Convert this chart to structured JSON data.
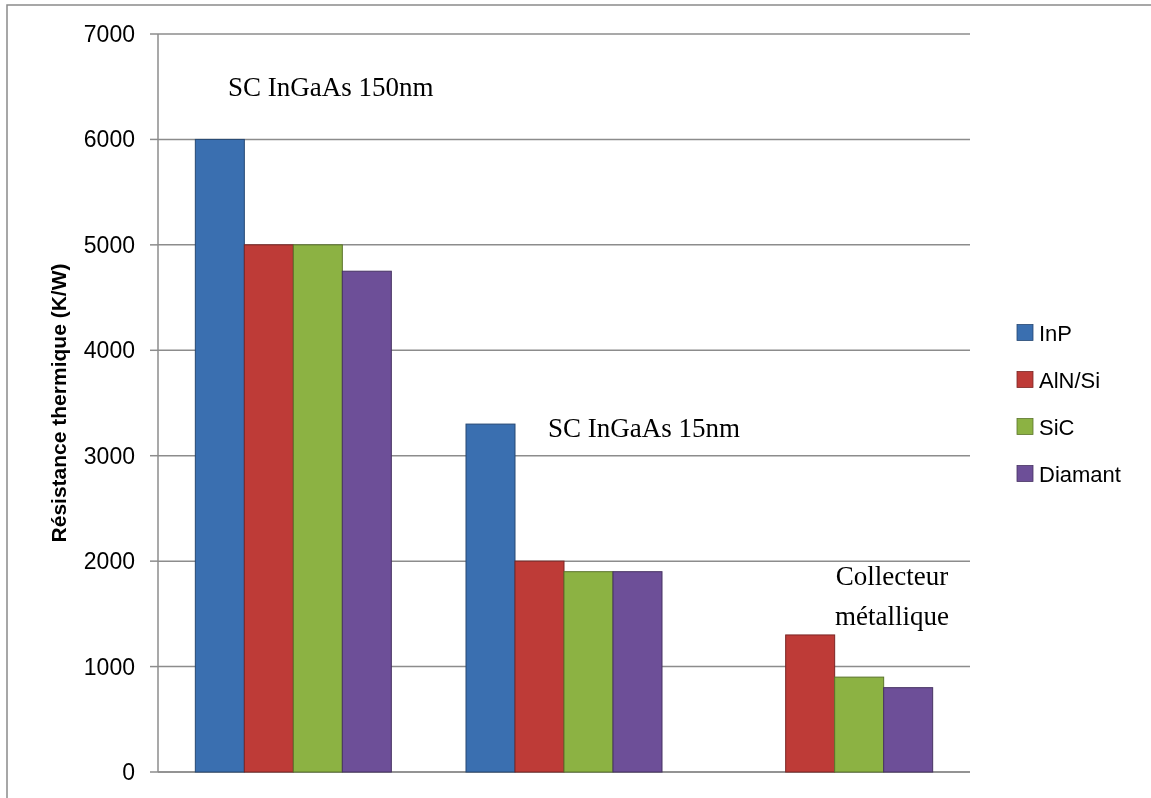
{
  "chart_data": {
    "type": "bar",
    "ylabel": "Résistance thermique (K/W)",
    "categories": [
      null,
      null,
      null
    ],
    "series": [
      {
        "name": "InP",
        "color": "#3a6fb0",
        "values": [
          6000,
          3300,
          null
        ]
      },
      {
        "name": "AlN/Si",
        "color": "#be3b37",
        "values": [
          5000,
          2000,
          1300
        ]
      },
      {
        "name": "SiC",
        "color": "#8cb243",
        "values": [
          5000,
          1900,
          900
        ]
      },
      {
        "name": "Diamant",
        "color": "#6d4f98",
        "values": [
          4750,
          1900,
          800
        ]
      }
    ],
    "ylim": [
      0,
      7000
    ],
    "yticks": [
      0,
      1000,
      2000,
      3000,
      4000,
      5000,
      6000,
      7000
    ],
    "grid": "y",
    "legend": "right",
    "annotations": [
      "SC InGaAs 150nm",
      "SC InGaAs 15nm",
      "Collecteur métallique"
    ]
  }
}
